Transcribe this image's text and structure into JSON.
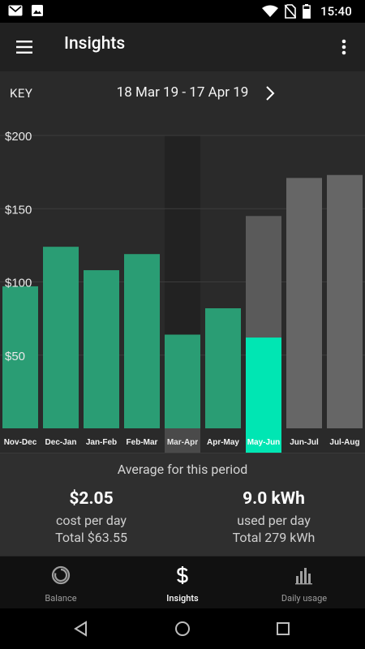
{
  "status_bar": {
    "time": "15:40",
    "left_icons": [
      "gmail-icon",
      "image-icon"
    ],
    "right_icons": [
      "wifi-icon",
      "no-sim-icon",
      "battery-icon"
    ]
  },
  "app_bar": {
    "title": "Insights",
    "menu_icon": "menu-icon",
    "overflow_icon": "more-vert-icon"
  },
  "date_bar": {
    "key_label": "KEY",
    "range": "18 Mar 19 - 17 Apr 19",
    "next_icon": "chevron-right-icon"
  },
  "colors": {
    "bar_actual": "#2a9d74",
    "bar_selected": "#00e6b3",
    "bar_forecast": "#5a5a5a",
    "bar_future": "#666666",
    "highlight_band": "#222222",
    "background": "#2a2a2a"
  },
  "chart_data": {
    "type": "bar",
    "categories": [
      "Nov-Dec",
      "Dec-Jan",
      "Jan-Feb",
      "Feb-Mar",
      "Mar-Apr",
      "Apr-May",
      "May-Jun",
      "Jun-Jul",
      "Jul-Aug"
    ],
    "values": [
      97,
      124,
      108,
      119,
      64,
      82,
      62,
      171,
      173
    ],
    "forecast_values": [
      null,
      null,
      null,
      null,
      null,
      null,
      145,
      null,
      null
    ],
    "bar_kinds": [
      "actual",
      "actual",
      "actual",
      "actual",
      "actual",
      "actual",
      "selected",
      "future",
      "future"
    ],
    "highlighted_period": "Mar-Apr",
    "selected_period": "May-Jun",
    "y_ticks": [
      "$200",
      "$150",
      "$100",
      "$50"
    ],
    "y_tick_values": [
      200,
      150,
      100,
      50
    ],
    "ylim": [
      0,
      200
    ],
    "grid": true,
    "legend": "none",
    "title": "",
    "xlabel": "",
    "ylabel": ""
  },
  "summary": {
    "heading": "Average for this period",
    "cost": {
      "value": "$2.05",
      "label": "cost per day",
      "total": "Total $63.55"
    },
    "usage": {
      "value": "9.0 kWh",
      "label": "used per day",
      "total": "Total 279 kWh"
    }
  },
  "bottom_nav": {
    "items": [
      {
        "label": "Balance",
        "icon": "balance-ring-icon",
        "active": false
      },
      {
        "label": "Insights",
        "icon": "dollar-icon",
        "active": true
      },
      {
        "label": "Daily usage",
        "icon": "bar-chart-icon",
        "active": false
      }
    ]
  },
  "system_nav": {
    "icons": [
      "back-icon",
      "home-icon",
      "recents-icon"
    ]
  }
}
